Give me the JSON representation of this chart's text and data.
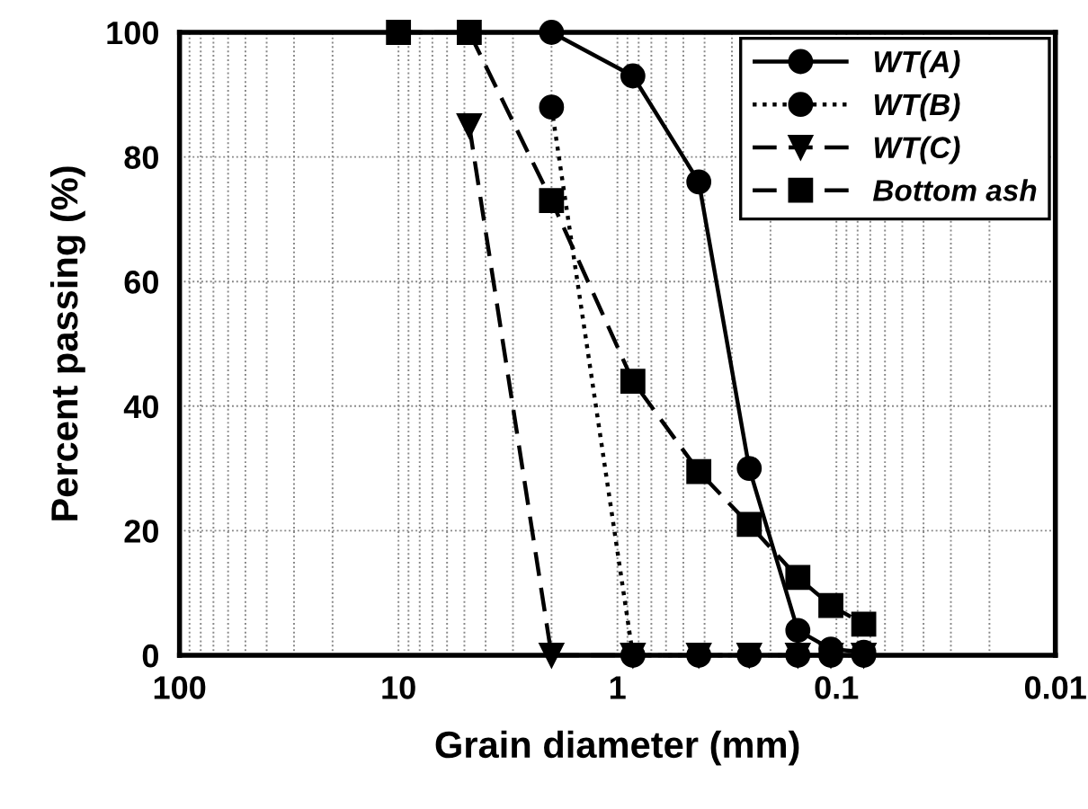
{
  "chart_data": {
    "type": "line",
    "xlabel": "Grain diameter (mm)",
    "ylabel": "Percent passing (%)",
    "log": "x",
    "xlim": [
      100,
      0.01
    ],
    "xticks": [
      100,
      10,
      1,
      0.1,
      0.01
    ],
    "ylim": [
      0,
      100
    ],
    "yticks": [
      0,
      20,
      40,
      60,
      80,
      100
    ],
    "grid": true,
    "legend": "top right",
    "series": [
      {
        "name": "WT(A)",
        "color": "#000000",
        "marker": "circle",
        "line_style": "solid",
        "x": [
          2,
          0.85,
          0.425,
          0.25,
          0.15,
          0.106,
          0.075
        ],
        "values": [
          100,
          93,
          76,
          30,
          4,
          1,
          0.5
        ]
      },
      {
        "name": "WT(B)",
        "color": "#000000",
        "marker": "circle",
        "line_style": "dotted",
        "x": [
          2,
          0.85,
          0.425,
          0.25,
          0.15,
          0.106,
          0.075
        ],
        "values": [
          88,
          0,
          0,
          0,
          0,
          0,
          0
        ]
      },
      {
        "name": "WT(C)",
        "color": "#000000",
        "marker": "triangle",
        "line_style": "dashed",
        "x": [
          4.75,
          2,
          0.85,
          0.425,
          0.25,
          0.15,
          0.106,
          0.075
        ],
        "values": [
          85,
          0,
          0,
          0,
          0,
          0,
          0,
          0
        ]
      },
      {
        "name": "Bottom ash",
        "color": "#000000",
        "marker": "square",
        "line_style": "dashed",
        "x": [
          10,
          4.75,
          2,
          0.85,
          0.425,
          0.25,
          0.15,
          0.106,
          0.075
        ],
        "values": [
          100,
          100,
          73,
          44,
          29.5,
          21,
          12.5,
          8,
          5
        ]
      }
    ]
  }
}
